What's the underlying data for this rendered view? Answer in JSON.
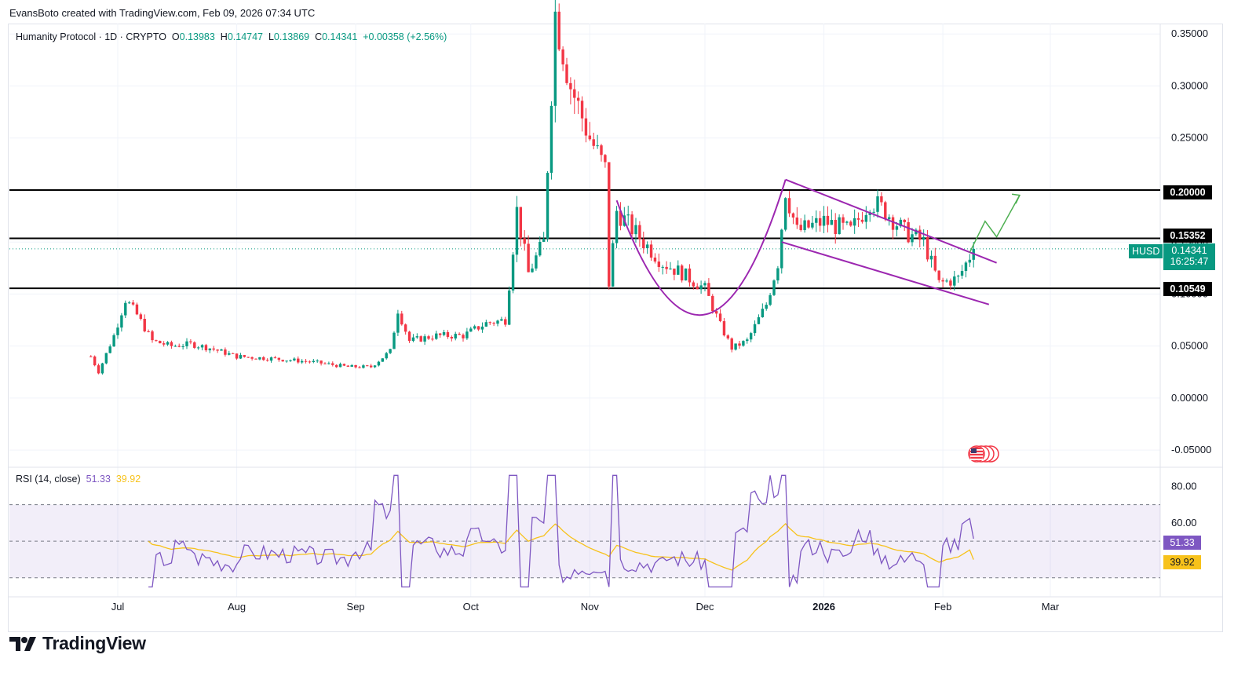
{
  "header": {
    "attribution": "EvansBoto created with TradingView.com, Feb 09, 2026 07:34 UTC"
  },
  "legend": {
    "symbol": "Humanity Protocol · 1D · CRYPTO",
    "o_label": "O",
    "o_value": "0.13983",
    "h_label": "H",
    "h_value": "0.14747",
    "l_label": "L",
    "l_value": "0.13869",
    "c_label": "C",
    "c_value": "0.14341",
    "change": "+0.00358 (+2.56%)"
  },
  "price_tags": {
    "ticker": "HUSD",
    "last_price": "0.14341",
    "countdown": "16:25:47",
    "level_high": "0.20000",
    "level_mid": "0.15352",
    "level_low": "0.10549"
  },
  "rsi": {
    "label": "RSI (14, close)",
    "value": "51.33",
    "ma_value": "39.92",
    "tag_value": "51.33",
    "tag_ma": "39.92"
  },
  "brand": {
    "name": "TradingView"
  },
  "colors": {
    "up": "#089981",
    "down": "#f23645",
    "pattern": "#9c27b0",
    "projection": "#4caf50",
    "rsi": "#7e57c2",
    "rsi_ma": "#f7c21b",
    "level": "#000000"
  },
  "chart_data": [
    {
      "type": "candlestick",
      "x_tick_labels": [
        "Jul",
        "Aug",
        "Sep",
        "Oct",
        "Nov",
        "Dec",
        "2026",
        "Feb",
        "Mar"
      ],
      "y_tick_labels": [
        "0.35000",
        "0.30000",
        "0.25000",
        "0.20000",
        "0.15000",
        "0.10000",
        "0.05000",
        "0.00000",
        "-0.05000"
      ],
      "ylim": [
        -0.065,
        0.36
      ],
      "horizontal_levels": [
        0.2,
        0.15352,
        0.10549
      ],
      "last_close": 0.14341,
      "close_profile": [
        [
          "2025-06-24",
          0.04
        ],
        [
          "2025-06-26",
          0.025
        ],
        [
          "2025-06-30",
          0.06
        ],
        [
          "2025-07-03",
          0.095
        ],
        [
          "2025-07-06",
          0.08
        ],
        [
          "2025-07-10",
          0.055
        ],
        [
          "2025-07-15",
          0.05
        ],
        [
          "2025-07-20",
          0.052
        ],
        [
          "2025-07-25",
          0.048
        ],
        [
          "2025-08-01",
          0.04
        ],
        [
          "2025-08-10",
          0.038
        ],
        [
          "2025-08-20",
          0.035
        ],
        [
          "2025-08-30",
          0.03
        ],
        [
          "2025-09-05",
          0.03
        ],
        [
          "2025-09-10",
          0.045
        ],
        [
          "2025-09-12",
          0.085
        ],
        [
          "2025-09-15",
          0.055
        ],
        [
          "2025-09-22",
          0.06
        ],
        [
          "2025-09-29",
          0.06
        ],
        [
          "2025-10-05",
          0.072
        ],
        [
          "2025-10-10",
          0.075
        ],
        [
          "2025-10-13",
          0.18
        ],
        [
          "2025-10-16",
          0.12
        ],
        [
          "2025-10-20",
          0.15
        ],
        [
          "2025-10-23",
          0.37
        ],
        [
          "2025-10-27",
          0.3
        ],
        [
          "2025-11-01",
          0.25
        ],
        [
          "2025-11-05",
          0.22
        ],
        [
          "2025-11-06",
          0.11
        ],
        [
          "2025-11-08",
          0.18
        ],
        [
          "2025-11-15",
          0.15
        ],
        [
          "2025-11-20",
          0.13
        ],
        [
          "2025-11-25",
          0.12
        ],
        [
          "2025-12-01",
          0.105
        ],
        [
          "2025-12-05",
          0.07
        ],
        [
          "2025-12-08",
          0.048
        ],
        [
          "2025-12-12",
          0.055
        ],
        [
          "2025-12-17",
          0.09
        ],
        [
          "2025-12-20",
          0.13
        ],
        [
          "2025-12-22",
          0.2
        ],
        [
          "2025-12-25",
          0.16
        ],
        [
          "2026-01-01",
          0.17
        ],
        [
          "2026-01-08",
          0.16
        ],
        [
          "2026-01-13",
          0.19
        ],
        [
          "2026-01-17",
          0.18
        ],
        [
          "2026-01-22",
          0.16
        ],
        [
          "2026-01-27",
          0.15
        ],
        [
          "2026-01-31",
          0.11
        ],
        [
          "2026-02-05",
          0.115
        ],
        [
          "2026-02-09",
          0.14341
        ]
      ]
    },
    {
      "type": "line",
      "title": "RSI (14, close)",
      "y_tick_labels": [
        "80.00",
        "60.00"
      ],
      "bands": [
        70,
        50,
        30
      ],
      "ylim": [
        20,
        90
      ],
      "last_rsi": 51.33,
      "last_rsi_ma": 39.92
    }
  ]
}
